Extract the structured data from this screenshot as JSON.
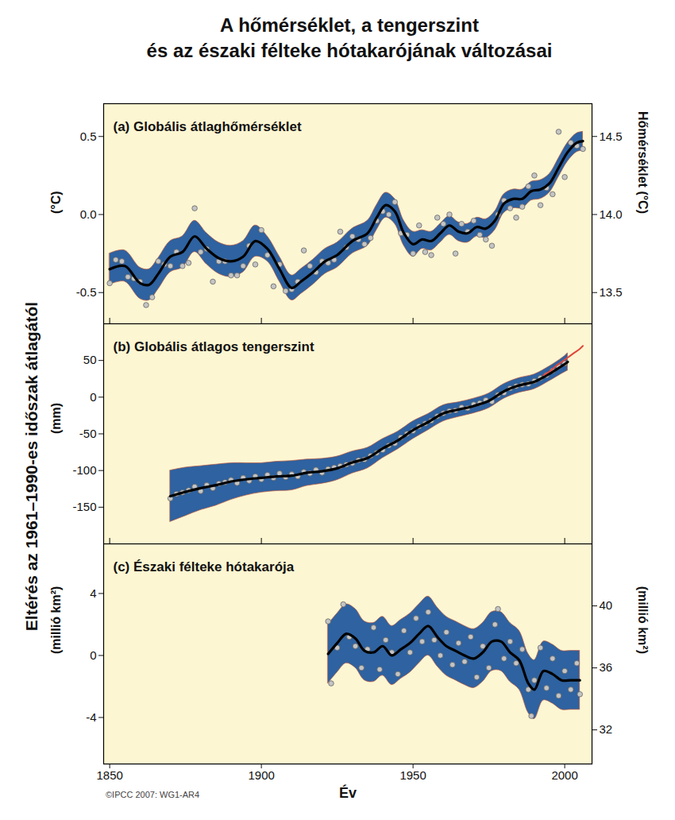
{
  "title": "A hőmérséklet, a tengerszint\nés az északi félteke hótakarójának változásai",
  "ylabel": "Eltérés az 1961–1990-es időszak átlagától",
  "source": "©IPCC 2007: WG1-AR4",
  "chart_data": [
    {
      "type": "line",
      "title": "(a) Globális átlaghőmérséklet",
      "ylabel": "(°C)",
      "y2label": "Hőmérséklet (°C)",
      "xlim": [
        1848,
        2009
      ],
      "xticks": [
        1850,
        1900,
        1950,
        2000
      ],
      "ylim": [
        -0.7,
        0.71
      ],
      "yticks": [
        -0.5,
        {
          "value": 0,
          "label": "0.0"
        },
        0.5
      ],
      "y2lim": [
        13.3,
        14.71
      ],
      "y2ticks": [
        13.5,
        {
          "value": 14,
          "label": "14.0"
        },
        14.5
      ],
      "tick_labels": "y",
      "grid": false,
      "series": [
        {
          "type": "area",
          "color": "#2e62a0",
          "x": [
            1850,
            1855,
            1860,
            1863,
            1866,
            1870,
            1874,
            1878,
            1882,
            1886,
            1890,
            1894,
            1898,
            1902,
            1906,
            1910,
            1913,
            1917,
            1921,
            1925,
            1930,
            1935,
            1938,
            1941,
            1944,
            1947,
            1950,
            1953,
            1956,
            1959,
            1962,
            1965,
            1968,
            1971,
            1974,
            1977,
            1980,
            1983,
            1986,
            1989,
            1992,
            1995,
            1998,
            2001,
            2004,
            2006
          ],
          "lower": [
            -0.45,
            -0.43,
            -0.54,
            -0.55,
            -0.48,
            -0.37,
            -0.34,
            -0.24,
            -0.32,
            -0.38,
            -0.4,
            -0.37,
            -0.27,
            -0.3,
            -0.43,
            -0.55,
            -0.51,
            -0.45,
            -0.38,
            -0.34,
            -0.25,
            -0.2,
            -0.1,
            -0.02,
            -0.06,
            -0.2,
            -0.27,
            -0.22,
            -0.23,
            -0.18,
            -0.13,
            -0.17,
            -0.18,
            -0.14,
            -0.15,
            -0.1,
            0.01,
            0.04,
            0.04,
            0.09,
            0.1,
            0.14,
            0.24,
            0.34,
            0.4,
            0.41
          ],
          "upper": [
            -0.25,
            -0.23,
            -0.34,
            -0.35,
            -0.28,
            -0.17,
            -0.14,
            -0.04,
            -0.12,
            -0.18,
            -0.2,
            -0.17,
            -0.07,
            -0.14,
            -0.27,
            -0.39,
            -0.35,
            -0.29,
            -0.22,
            -0.18,
            -0.09,
            -0.04,
            0.06,
            0.14,
            0.1,
            -0.04,
            -0.11,
            -0.1,
            -0.11,
            -0.06,
            -0.01,
            -0.05,
            -0.06,
            -0.02,
            -0.03,
            0.02,
            0.13,
            0.16,
            0.16,
            0.21,
            0.22,
            0.26,
            0.36,
            0.46,
            0.52,
            0.53
          ]
        },
        {
          "type": "scatter",
          "marker": "circle",
          "color": "#c4c4c4",
          "x": [
            1850,
            1852,
            1854,
            1856,
            1858,
            1860,
            1862,
            1864,
            1866,
            1868,
            1870,
            1872,
            1874,
            1876,
            1878,
            1880,
            1882,
            1884,
            1886,
            1888,
            1890,
            1892,
            1894,
            1896,
            1898,
            1900,
            1902,
            1904,
            1906,
            1908,
            1910,
            1912,
            1914,
            1916,
            1918,
            1920,
            1922,
            1924,
            1926,
            1928,
            1930,
            1932,
            1934,
            1936,
            1938,
            1940,
            1942,
            1944,
            1946,
            1948,
            1950,
            1952,
            1954,
            1956,
            1958,
            1960,
            1962,
            1964,
            1966,
            1968,
            1970,
            1972,
            1974,
            1976,
            1978,
            1980,
            1982,
            1984,
            1986,
            1988,
            1990,
            1992,
            1994,
            1996,
            1998,
            2000,
            2002,
            2004,
            2006
          ],
          "values": [
            -0.44,
            -0.29,
            -0.3,
            -0.4,
            -0.41,
            -0.43,
            -0.58,
            -0.53,
            -0.3,
            -0.32,
            -0.33,
            -0.24,
            -0.33,
            -0.31,
            0.04,
            -0.24,
            -0.22,
            -0.43,
            -0.3,
            -0.3,
            -0.39,
            -0.39,
            -0.33,
            -0.2,
            -0.32,
            -0.1,
            -0.26,
            -0.46,
            -0.32,
            -0.49,
            -0.48,
            -0.43,
            -0.23,
            -0.33,
            -0.37,
            -0.3,
            -0.31,
            -0.29,
            -0.11,
            -0.21,
            -0.14,
            -0.16,
            -0.19,
            -0.15,
            -0.04,
            0.02,
            0.0,
            0.08,
            -0.12,
            -0.13,
            -0.25,
            -0.07,
            -0.24,
            -0.26,
            -0.02,
            -0.06,
            0.0,
            -0.25,
            -0.06,
            -0.11,
            -0.04,
            -0.13,
            -0.16,
            -0.2,
            0.0,
            0.09,
            0.04,
            -0.02,
            0.05,
            0.18,
            0.25,
            0.06,
            0.17,
            0.13,
            0.53,
            0.24,
            0.46,
            0.44,
            0.42
          ]
        },
        {
          "type": "line",
          "line_style": "solid",
          "color": "#000000",
          "x": [
            1850,
            1855,
            1860,
            1863,
            1866,
            1870,
            1874,
            1878,
            1882,
            1886,
            1890,
            1894,
            1898,
            1902,
            1906,
            1910,
            1913,
            1917,
            1921,
            1925,
            1930,
            1935,
            1938,
            1941,
            1944,
            1947,
            1950,
            1953,
            1956,
            1959,
            1962,
            1965,
            1968,
            1971,
            1974,
            1977,
            1980,
            1983,
            1986,
            1989,
            1992,
            1995,
            1998,
            2001,
            2004,
            2006
          ],
          "values": [
            -0.35,
            -0.33,
            -0.44,
            -0.45,
            -0.38,
            -0.27,
            -0.24,
            -0.14,
            -0.22,
            -0.28,
            -0.3,
            -0.27,
            -0.17,
            -0.22,
            -0.35,
            -0.47,
            -0.43,
            -0.37,
            -0.3,
            -0.26,
            -0.17,
            -0.12,
            -0.02,
            0.06,
            0.02,
            -0.12,
            -0.19,
            -0.16,
            -0.17,
            -0.12,
            -0.07,
            -0.11,
            -0.12,
            -0.08,
            -0.09,
            -0.04,
            0.07,
            0.1,
            0.1,
            0.15,
            0.16,
            0.2,
            0.3,
            0.4,
            0.46,
            0.47
          ]
        }
      ]
    },
    {
      "type": "line",
      "title": "(b) Globális átlagos tengerszint",
      "ylabel": "(mm)",
      "xlim": [
        1848,
        2009
      ],
      "xticks": [
        1850,
        1900,
        1950,
        2000
      ],
      "ylim": [
        -200,
        100
      ],
      "yticks": [
        -150,
        -100,
        -50,
        0,
        50
      ],
      "tick_labels": "y",
      "grid": false,
      "series": [
        {
          "type": "area",
          "color": "#2e62a0",
          "x": [
            1870,
            1875,
            1880,
            1885,
            1890,
            1895,
            1900,
            1905,
            1910,
            1915,
            1920,
            1925,
            1930,
            1935,
            1940,
            1945,
            1950,
            1955,
            1960,
            1965,
            1970,
            1975,
            1980,
            1985,
            1990,
            1995,
            2000,
            2001
          ],
          "lower": [
            -170,
            -162,
            -154,
            -148,
            -140,
            -134,
            -130,
            -128,
            -127,
            -121,
            -118,
            -113,
            -104,
            -97,
            -83,
            -71,
            -57,
            -45,
            -33,
            -27,
            -22,
            -15,
            -2,
            6,
            11,
            22,
            34,
            36
          ],
          "upper": [
            -100,
            -96,
            -94,
            -92,
            -90,
            -90,
            -90,
            -88,
            -87,
            -85,
            -84,
            -81,
            -74,
            -69,
            -57,
            -47,
            -33,
            -23,
            -11,
            -7,
            -2,
            5,
            18,
            26,
            31,
            42,
            56,
            60
          ]
        },
        {
          "type": "scatter",
          "marker": "circle",
          "color": "#c4c4c4",
          "x": [
            1870,
            1872,
            1874,
            1876,
            1878,
            1880,
            1882,
            1884,
            1886,
            1888,
            1890,
            1892,
            1894,
            1896,
            1898,
            1900,
            1902,
            1904,
            1906,
            1908,
            1910,
            1912,
            1914,
            1916,
            1918,
            1920,
            1922,
            1924,
            1926,
            1928,
            1930,
            1932,
            1934,
            1936,
            1938,
            1940,
            1942,
            1944,
            1946,
            1948,
            1950,
            1952,
            1954,
            1956,
            1958,
            1960,
            1962,
            1964,
            1966,
            1968,
            1970,
            1972,
            1974,
            1976,
            1978,
            1980,
            1982,
            1984,
            1986,
            1988,
            1990,
            1992,
            1994,
            1996,
            1998,
            2000
          ],
          "values": [
            -138,
            -132,
            -130,
            -127,
            -122,
            -128,
            -120,
            -124,
            -118,
            -116,
            -113,
            -117,
            -110,
            -114,
            -108,
            -112,
            -106,
            -110,
            -104,
            -109,
            -105,
            -108,
            -102,
            -104,
            -99,
            -103,
            -98,
            -96,
            -94,
            -92,
            -90,
            -86,
            -85,
            -80,
            -76,
            -72,
            -66,
            -63,
            -55,
            -50,
            -46,
            -40,
            -36,
            -32,
            -26,
            -22,
            -19,
            -18,
            -14,
            -15,
            -10,
            -8,
            -4,
            -6,
            3,
            6,
            12,
            15,
            17,
            18,
            22,
            26,
            30,
            36,
            42,
            46
          ]
        },
        {
          "type": "line",
          "line_style": "solid",
          "color": "#000000",
          "x": [
            1870,
            1875,
            1880,
            1885,
            1890,
            1895,
            1900,
            1905,
            1910,
            1915,
            1920,
            1925,
            1930,
            1935,
            1940,
            1945,
            1950,
            1955,
            1960,
            1965,
            1970,
            1975,
            1980,
            1985,
            1990,
            1995,
            2000,
            2001
          ],
          "values": [
            -135,
            -129,
            -124,
            -120,
            -115,
            -112,
            -110,
            -108,
            -107,
            -103,
            -101,
            -97,
            -89,
            -83,
            -70,
            -59,
            -45,
            -34,
            -22,
            -17,
            -12,
            -5,
            8,
            16,
            21,
            32,
            45,
            48
          ]
        },
        {
          "type": "line",
          "line_style": "solid",
          "color": "#e0483b",
          "x": [
            1993,
            1995,
            1997,
            1999,
            2001,
            2003,
            2005,
            2006
          ],
          "values": [
            30,
            35,
            42,
            48,
            54,
            60,
            66,
            70
          ]
        }
      ]
    },
    {
      "type": "line",
      "title": "(c) Északi félteke hótakarója",
      "ylabel": "(millió km²)",
      "y2label": "(millió km²)",
      "xlabel": "Év",
      "xlim": [
        1848,
        2009
      ],
      "xticks": [
        1850,
        1900,
        1950,
        2000
      ],
      "ylim": [
        -7,
        7.2
      ],
      "yticks": [
        -4,
        0,
        4
      ],
      "y2lim": [
        29.8,
        44.0
      ],
      "y2ticks": [
        32,
        36,
        40
      ],
      "grid": false,
      "series": [
        {
          "type": "area",
          "color": "#2e62a0",
          "x": [
            1922,
            1925,
            1928,
            1931,
            1934,
            1937,
            1940,
            1943,
            1946,
            1949,
            1952,
            1955,
            1958,
            1961,
            1964,
            1967,
            1970,
            1973,
            1976,
            1979,
            1982,
            1985,
            1988,
            1990,
            1993,
            1996,
            1999,
            2002,
            2005
          ],
          "lower": [
            -1.8,
            -1.1,
            -0.5,
            -0.8,
            -1.6,
            -1.7,
            -1.3,
            -1.9,
            -1.5,
            -1.1,
            -0.5,
            0.0,
            -0.7,
            -1.3,
            -1.6,
            -1.9,
            -2.1,
            -1.7,
            -1.0,
            -1.0,
            -1.7,
            -2.2,
            -3.7,
            -4.1,
            -2.9,
            -3.1,
            -3.5,
            -3.5,
            -3.5
          ],
          "upper": [
            2.0,
            2.7,
            3.3,
            3.0,
            2.2,
            2.1,
            2.5,
            1.9,
            2.3,
            2.7,
            3.3,
            3.8,
            3.1,
            2.5,
            2.2,
            1.9,
            1.7,
            2.1,
            2.8,
            2.8,
            2.1,
            1.6,
            0.1,
            -0.3,
            0.9,
            0.7,
            0.3,
            0.3,
            0.3
          ]
        },
        {
          "type": "scatter",
          "marker": "circle",
          "color": "#c4c4c4",
          "x": [
            1922,
            1923,
            1925,
            1927,
            1929,
            1931,
            1933,
            1935,
            1937,
            1939,
            1941,
            1943,
            1945,
            1947,
            1949,
            1951,
            1953,
            1955,
            1957,
            1959,
            1961,
            1963,
            1965,
            1967,
            1969,
            1971,
            1973,
            1975,
            1977,
            1978,
            1980,
            1982,
            1984,
            1986,
            1988,
            1989,
            1990,
            1992,
            1994,
            1996,
            1998,
            2000,
            2002,
            2004,
            2005
          ],
          "values": [
            2.2,
            -1.8,
            0.5,
            3.3,
            1.2,
            0.6,
            -0.8,
            0.4,
            1.8,
            -0.9,
            1.0,
            0.2,
            -1.2,
            1.6,
            0.2,
            2.4,
            0.9,
            2.8,
            1.0,
            0.0,
            1.5,
            -0.6,
            0.8,
            -0.4,
            1.2,
            -1.4,
            0.6,
            -0.8,
            2.0,
            3.0,
            -0.2,
            0.9,
            -0.5,
            0.4,
            -2.2,
            -3.9,
            -1.6,
            0.5,
            -2.1,
            -0.2,
            -2.6,
            -1.0,
            -2.2,
            -0.5,
            -2.5
          ]
        },
        {
          "type": "line",
          "line_style": "solid",
          "color": "#000000",
          "x": [
            1922,
            1925,
            1928,
            1931,
            1934,
            1937,
            1940,
            1943,
            1946,
            1949,
            1952,
            1955,
            1958,
            1961,
            1964,
            1967,
            1970,
            1973,
            1976,
            1979,
            1982,
            1985,
            1988,
            1990,
            1993,
            1996,
            1999,
            2002,
            2005
          ],
          "values": [
            0.1,
            0.8,
            1.4,
            1.1,
            0.3,
            0.2,
            0.6,
            0.0,
            0.4,
            0.8,
            1.4,
            1.9,
            1.2,
            0.6,
            0.3,
            0.0,
            -0.2,
            0.2,
            0.9,
            0.9,
            0.2,
            -0.3,
            -1.8,
            -2.2,
            -1.0,
            -1.2,
            -1.6,
            -1.6,
            -1.6
          ]
        }
      ]
    }
  ]
}
